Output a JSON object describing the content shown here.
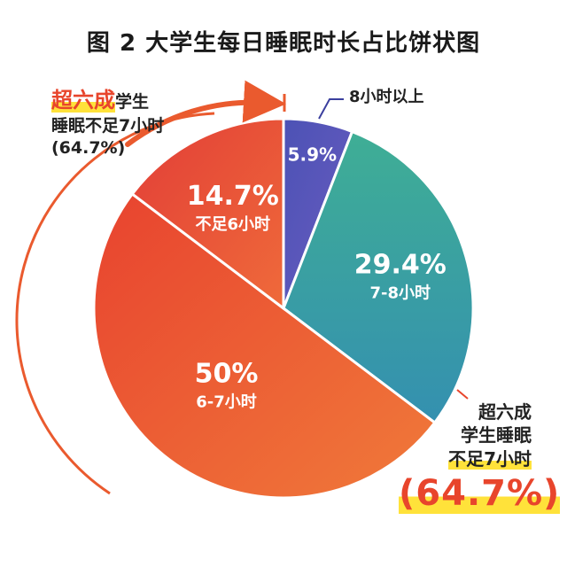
{
  "chart_data": {
    "type": "pie",
    "title": "图 2 大学生每日睡眠时长占比饼状图",
    "slices": [
      {
        "label": "8小时以上",
        "value": 5.9,
        "value_label": "5.9%",
        "color": "#5a57b8"
      },
      {
        "label": "7-8小时",
        "value": 29.4,
        "value_label": "29.4%",
        "color": "#3fa59a"
      },
      {
        "label": "6-7小时",
        "value": 50,
        "value_label": "50%",
        "color": "#e74d30"
      },
      {
        "label": "不足6小时",
        "value": 14.7,
        "value_label": "14.7%",
        "color": "#ea5a3a"
      }
    ],
    "start": "12 o'clock",
    "direction": "clockwise"
  },
  "callouts": {
    "left": {
      "highlight": "超六成",
      "rest": "学生",
      "line2": "睡眠不足7小时",
      "line3": "(64.7%)"
    },
    "right": {
      "line1": "超六成",
      "line2": "学生睡眠",
      "line3": "不足7小时",
      "line4": "(64.7%)"
    }
  },
  "colors": {
    "accent": "#e8452c",
    "highlight": "#ffe23a",
    "border": "#ffffff"
  }
}
